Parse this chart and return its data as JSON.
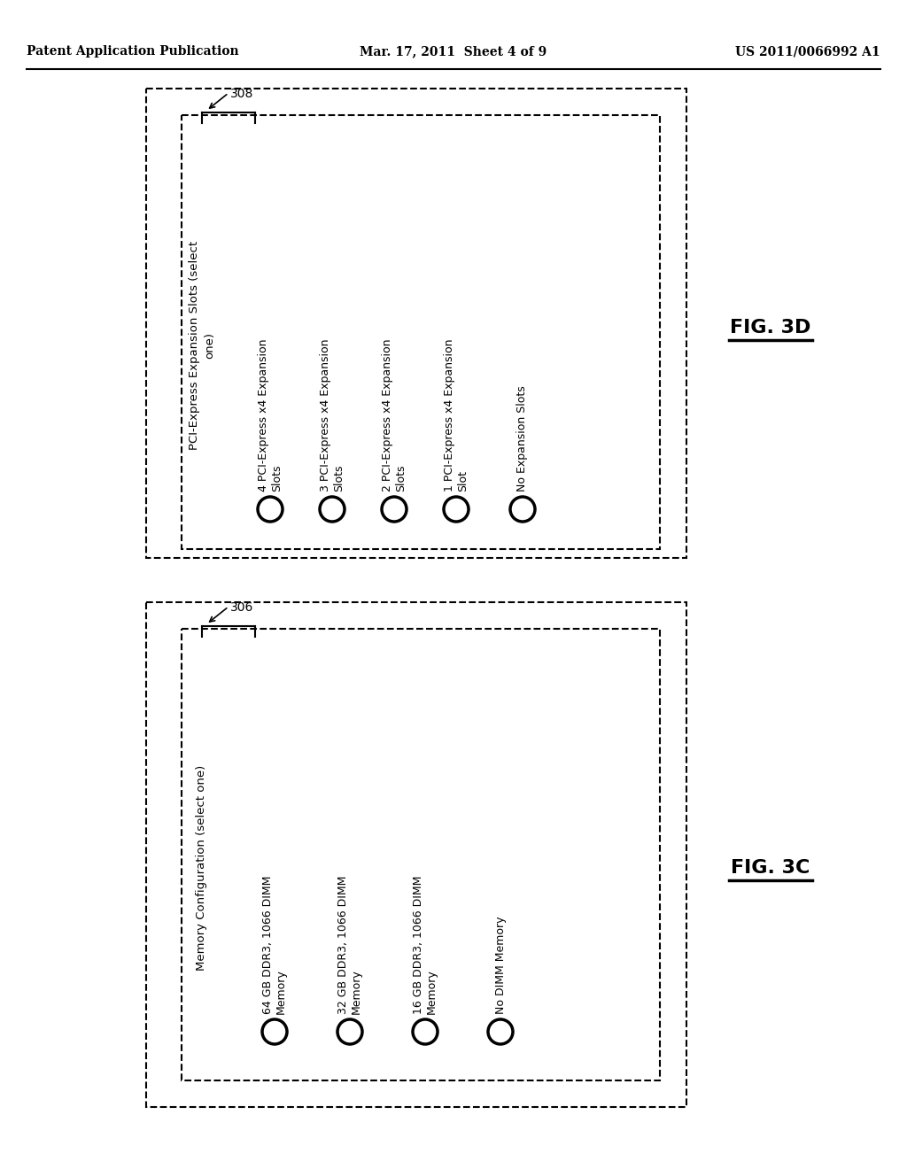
{
  "bg_color": "#ffffff",
  "header_left": "Patent Application Publication",
  "header_center": "Mar. 17, 2011  Sheet 4 of 9",
  "header_right": "US 2011/0066992 A1",
  "fig3d_label": "FIG. 3D",
  "fig3c_label": "FIG. 3C",
  "box3d_ref": "308",
  "box3c_ref": "306",
  "box3d_title": "PCI-Express Expansion Slots (select\none)",
  "box3d_items": [
    "4 PCI-Express x4 Expansion\nSlots",
    "3 PCI-Express x4 Expansion\nSlots",
    "2 PCI-Express x4 Expansion\nSlots",
    "1 PCI-Express x4 Expansion\nSlot",
    "No Expansion Slots"
  ],
  "box3c_title": "Memory Configuration (select one)",
  "box3c_items": [
    "64 GB DDR3, 1066 DIMM\nMemory",
    "32 GB DDR3, 1066 DIMM\nMemory",
    "16 GB DDR3, 1066 DIMM\nMemory",
    "No DIMM Memory"
  ]
}
